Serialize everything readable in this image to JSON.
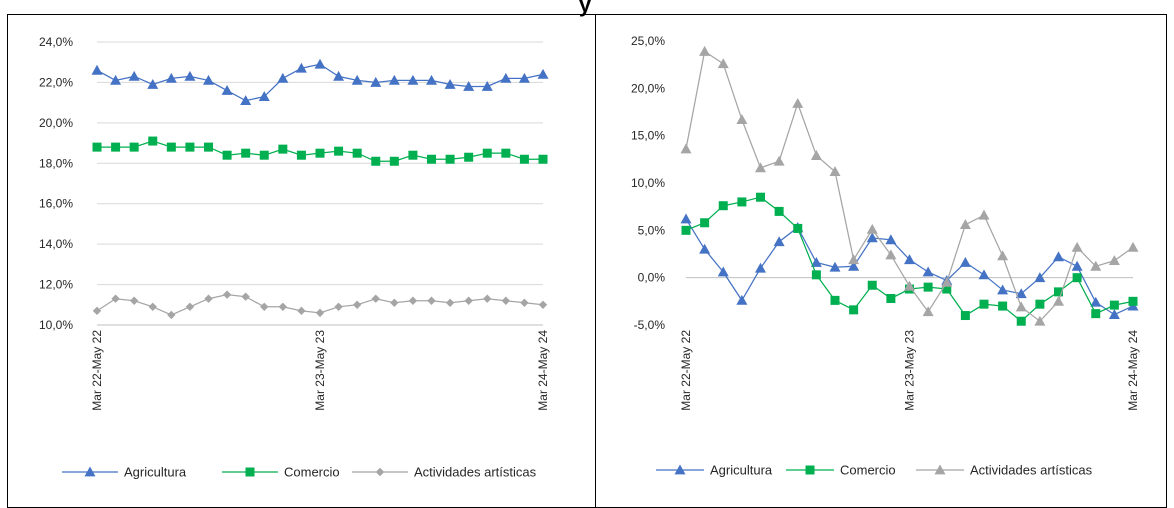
{
  "figure": {
    "cut_title": "y",
    "colors": {
      "agricultura_left": "#4472C4",
      "comercio": "#00B050",
      "artisticas_left": "#A5A5A5",
      "agricultura_right": "#4472C4",
      "artisticas_right": "#A5A5A5",
      "grid_line": "#D9D9D9",
      "panel_border": "#000000"
    }
  },
  "chart_data": [
    {
      "type": "line",
      "title": "",
      "xlabel": "",
      "ylabel": "",
      "ylim": [
        10,
        24
      ],
      "y_ticks": [
        "10,0%",
        "12,0%",
        "14,0%",
        "16,0%",
        "18,0%",
        "20,0%",
        "22,0%",
        "24,0%"
      ],
      "x_tick_labels": [
        "Mar 22-May 22",
        "Mar 23-May 23",
        "Mar 24-May 24"
      ],
      "x_tick_positions": [
        0,
        12,
        24
      ],
      "grid": true,
      "legend_position": "bottom",
      "x": [
        0,
        1,
        2,
        3,
        4,
        5,
        6,
        7,
        8,
        9,
        10,
        11,
        12,
        13,
        14,
        15,
        16,
        17,
        18,
        19,
        20,
        21,
        22,
        23,
        24
      ],
      "series": [
        {
          "name": "Agricultura",
          "marker": "triangle",
          "color": "#4472C4",
          "values": [
            22.6,
            22.1,
            22.3,
            21.9,
            22.2,
            22.3,
            22.1,
            21.6,
            21.1,
            21.3,
            22.2,
            22.7,
            22.9,
            22.3,
            22.1,
            22.0,
            22.1,
            22.1,
            22.1,
            21.9,
            21.8,
            21.8,
            22.2,
            22.2,
            22.4
          ]
        },
        {
          "name": "Comercio",
          "marker": "square",
          "color": "#00B050",
          "values": [
            18.8,
            18.8,
            18.8,
            19.1,
            18.8,
            18.8,
            18.8,
            18.4,
            18.5,
            18.4,
            18.7,
            18.4,
            18.5,
            18.6,
            18.5,
            18.1,
            18.1,
            18.4,
            18.2,
            18.2,
            18.3,
            18.5,
            18.5,
            18.2,
            18.2
          ]
        },
        {
          "name": "Actividades artísticas",
          "marker": "diamond",
          "color": "#A5A5A5",
          "values": [
            10.7,
            11.3,
            11.2,
            10.9,
            10.5,
            10.9,
            11.3,
            11.5,
            11.4,
            10.9,
            10.9,
            10.7,
            10.6,
            10.9,
            11.0,
            11.3,
            11.1,
            11.2,
            11.2,
            11.1,
            11.2,
            11.3,
            11.2,
            11.1,
            11.0
          ]
        }
      ]
    },
    {
      "type": "line",
      "title": "",
      "xlabel": "",
      "ylabel": "",
      "ylim": [
        -5,
        25
      ],
      "y_ticks": [
        "-5,0%",
        "0,0%",
        "5,0%",
        "10,0%",
        "15,0%",
        "20,0%",
        "25,0%"
      ],
      "x_tick_labels": [
        "Mar 22-May 22",
        "Mar 23-May 23",
        "Mar 24-May 24"
      ],
      "x_tick_positions": [
        0,
        12,
        24
      ],
      "grid": false,
      "zero_line": true,
      "legend_position": "bottom",
      "x": [
        0,
        1,
        2,
        3,
        4,
        5,
        6,
        7,
        8,
        9,
        10,
        11,
        12,
        13,
        14,
        15,
        16,
        17,
        18,
        19,
        20,
        21,
        22,
        23,
        24
      ],
      "series": [
        {
          "name": "Agricultura",
          "marker": "triangle",
          "color": "#4472C4",
          "values": [
            6.2,
            3.0,
            0.6,
            -2.4,
            1.0,
            3.8,
            5.3,
            1.6,
            1.1,
            1.2,
            4.2,
            4.0,
            1.9,
            0.6,
            -0.3,
            1.6,
            0.3,
            -1.3,
            -1.7,
            0.0,
            2.2,
            1.2,
            -2.6,
            -3.9,
            -3.0
          ]
        },
        {
          "name": "Comercio",
          "marker": "square",
          "color": "#00B050",
          "values": [
            5.0,
            5.8,
            7.6,
            8.0,
            8.5,
            7.0,
            5.2,
            0.3,
            -2.4,
            -3.4,
            -0.8,
            -2.2,
            -1.2,
            -1.0,
            -1.2,
            -4.0,
            -2.8,
            -3.0,
            -4.6,
            -2.8,
            -1.5,
            0.0,
            -3.8,
            -2.9,
            -2.5
          ]
        },
        {
          "name": "Actividades artísticas",
          "marker": "triangle",
          "color": "#A5A5A5",
          "values": [
            13.6,
            23.9,
            22.6,
            16.7,
            11.6,
            12.3,
            18.4,
            12.9,
            11.2,
            1.9,
            5.1,
            2.4,
            -0.9,
            -3.6,
            -0.5,
            5.6,
            6.6,
            2.3,
            -3.1,
            -4.6,
            -2.5,
            3.2,
            1.2,
            1.8,
            3.2
          ]
        }
      ]
    }
  ]
}
